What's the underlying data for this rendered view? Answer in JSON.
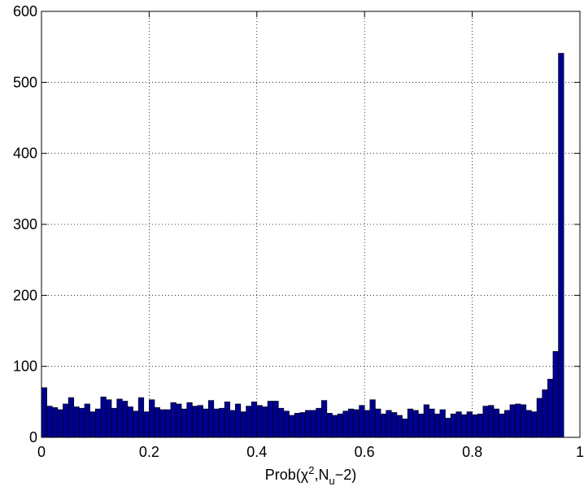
{
  "chart_data": {
    "type": "bar",
    "title": "",
    "xlabel": {
      "base": "Prob(",
      "symbol": "χ",
      "sup": "2",
      "mid": ",N",
      "sub": "u",
      "end": "−2)"
    },
    "ylabel": "",
    "xlim": [
      0,
      1
    ],
    "ylim": [
      0,
      600
    ],
    "xticks": [
      0,
      0.2,
      0.4,
      0.6,
      0.8,
      1
    ],
    "xtick_labels": [
      "0",
      "0.2",
      "0.4",
      "0.6",
      "0.8",
      "1"
    ],
    "yticks": [
      0,
      100,
      200,
      300,
      400,
      500,
      600
    ],
    "ytick_labels": [
      "0",
      "100",
      "200",
      "300",
      "400",
      "500",
      "600"
    ],
    "grid": true,
    "bar_color": "#00008F",
    "bin_width": 0.01,
    "values": [
      70,
      44,
      42,
      39,
      47,
      56,
      43,
      41,
      47,
      36,
      40,
      57,
      53,
      41,
      54,
      51,
      43,
      37,
      56,
      36,
      53,
      42,
      39,
      39,
      49,
      47,
      40,
      49,
      44,
      45,
      40,
      52,
      40,
      41,
      50,
      38,
      47,
      36,
      44,
      50,
      45,
      43,
      51,
      51,
      41,
      37,
      31,
      34,
      35,
      38,
      38,
      41,
      52,
      34,
      31,
      33,
      37,
      40,
      39,
      45,
      38,
      53,
      40,
      33,
      38,
      35,
      31,
      26,
      40,
      38,
      33,
      46,
      40,
      33,
      39,
      27,
      33,
      36,
      32,
      36,
      32,
      33,
      44,
      45,
      40,
      33,
      38,
      46,
      47,
      46,
      38,
      36,
      55,
      67,
      82,
      121,
      541
    ]
  }
}
